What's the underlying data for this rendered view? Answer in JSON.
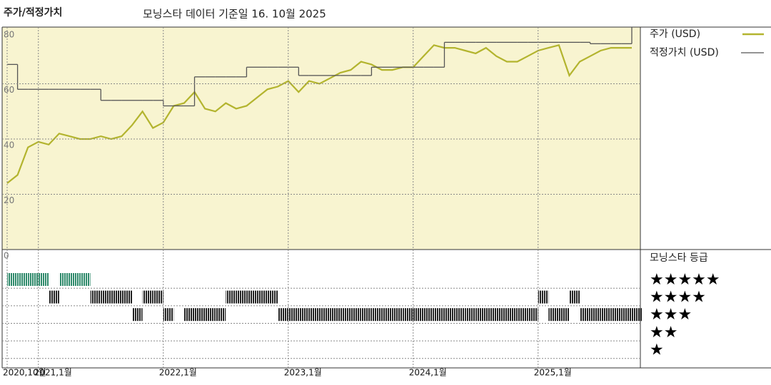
{
  "chart_data": {
    "type": "line",
    "title": "주가/적정가치",
    "subtitle": "모닝스타 데이터 기준일 16. 10월 2025",
    "x": [
      "2020-10",
      "2020-11",
      "2020-12",
      "2021-01",
      "2021-02",
      "2021-03",
      "2021-04",
      "2021-05",
      "2021-06",
      "2021-07",
      "2021-08",
      "2021-09",
      "2021-10",
      "2021-11",
      "2021-12",
      "2022-01",
      "2022-02",
      "2022-03",
      "2022-04",
      "2022-05",
      "2022-06",
      "2022-07",
      "2022-08",
      "2022-09",
      "2022-10",
      "2022-11",
      "2022-12",
      "2023-01",
      "2023-02",
      "2023-03",
      "2023-04",
      "2023-05",
      "2023-06",
      "2023-07",
      "2023-08",
      "2023-09",
      "2023-10",
      "2023-11",
      "2023-12",
      "2024-01",
      "2024-02",
      "2024-03",
      "2024-04",
      "2024-05",
      "2024-06",
      "2024-07",
      "2024-08",
      "2024-09",
      "2024-10",
      "2024-11",
      "2024-12",
      "2025-01",
      "2025-02",
      "2025-03",
      "2025-04",
      "2025-05",
      "2025-06",
      "2025-07",
      "2025-08",
      "2025-09",
      "2025-10"
    ],
    "series": [
      {
        "name": "주가 (USD)",
        "color": "#b3b42e",
        "values": [
          24,
          27,
          37,
          39,
          38,
          42,
          41,
          40,
          40,
          41,
          40,
          41,
          45,
          50,
          44,
          46,
          52,
          53,
          57,
          51,
          50,
          53,
          51,
          52,
          55,
          58,
          59,
          61,
          57,
          61,
          60,
          62,
          64,
          65,
          68,
          67,
          65,
          65,
          66,
          66,
          70,
          74,
          73,
          73,
          72,
          71,
          73,
          70,
          68,
          68,
          70,
          72,
          73,
          74,
          63,
          68,
          70,
          72,
          73,
          73,
          73
        ]
      },
      {
        "name": "적정가치 (USD)",
        "color": "#555555",
        "step": true,
        "values": [
          67,
          58,
          58,
          58,
          58,
          58,
          58,
          58,
          58,
          54,
          54,
          54,
          54,
          54,
          54,
          52,
          52,
          52,
          62.5,
          62.5,
          62.5,
          62.5,
          62.5,
          66,
          66,
          66,
          66,
          66,
          63,
          63,
          63,
          63,
          63,
          63,
          63,
          66,
          66,
          66,
          66,
          66,
          66,
          66,
          75,
          75,
          75,
          75,
          75,
          75,
          75,
          75,
          75,
          75,
          75,
          75,
          75,
          75,
          74.5,
          74.5,
          74.5,
          74.5,
          82
        ]
      }
    ],
    "xlim": [
      "2020-10",
      "2025-10"
    ],
    "xticks": [
      {
        "value": "2020-10",
        "label": "2020,10월"
      },
      {
        "value": "2021-01",
        "label": "2021,1월"
      },
      {
        "value": "2022-01",
        "label": "2022,1월"
      },
      {
        "value": "2023-01",
        "label": "2023,1월"
      },
      {
        "value": "2024-01",
        "label": "2024,1월"
      },
      {
        "value": "2025-01",
        "label": "2025,1월"
      }
    ],
    "ylim": [
      0,
      80
    ],
    "yticks": [
      0,
      20,
      40,
      60,
      80
    ],
    "grid": true,
    "ratings": {
      "title": "모닝스타 등급",
      "levels": [
        {
          "value": 5,
          "label": "★★★★★"
        },
        {
          "value": 4,
          "label": "★★★★"
        },
        {
          "value": 3,
          "label": "★★★"
        },
        {
          "value": 2,
          "label": "★★"
        },
        {
          "value": 1,
          "label": "★"
        }
      ],
      "colors": [
        "#2f8a6b",
        "#222222",
        "#222222",
        "#222222",
        "#222222"
      ],
      "values": [
        5,
        5,
        5,
        5,
        4,
        5,
        5,
        5,
        4,
        4,
        4,
        4,
        3,
        4,
        4,
        3,
        null,
        3,
        3,
        3,
        3,
        4,
        4,
        4,
        4,
        4,
        3,
        3,
        3,
        3,
        3,
        3,
        3,
        3,
        3,
        3,
        3,
        3,
        3,
        3,
        3,
        3,
        3,
        3,
        3,
        3,
        3,
        3,
        3,
        3,
        3,
        4,
        3,
        3,
        4,
        3,
        3,
        3,
        3,
        3,
        3
      ]
    }
  }
}
